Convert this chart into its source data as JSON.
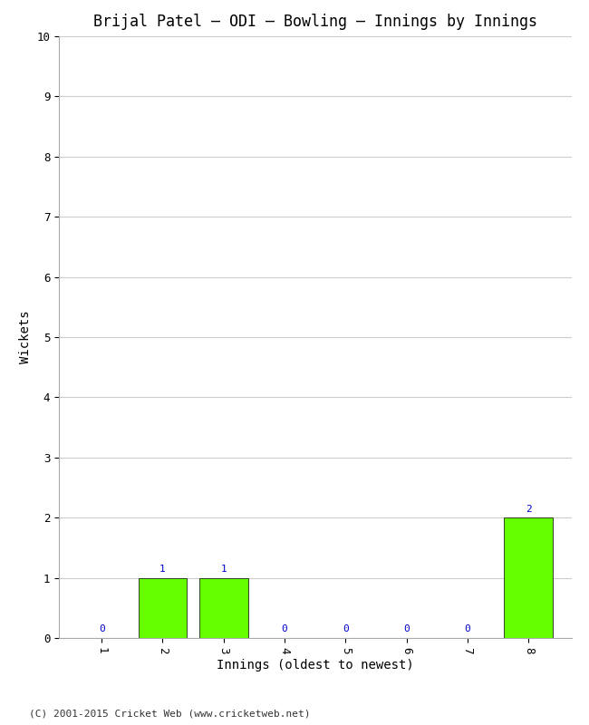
{
  "title": "Brijal Patel – ODI – Bowling – Innings by Innings",
  "xlabel": "Innings (oldest to newest)",
  "ylabel": "Wickets",
  "categories": [
    "1",
    "2",
    "3",
    "4",
    "5",
    "6",
    "7",
    "8"
  ],
  "values": [
    0,
    1,
    1,
    0,
    0,
    0,
    0,
    2
  ],
  "bar_color": "#66ff00",
  "bar_edge_color": "#000000",
  "ylim": [
    0,
    10
  ],
  "yticks": [
    0,
    1,
    2,
    3,
    4,
    5,
    6,
    7,
    8,
    9,
    10
  ],
  "label_color": "#0000cc",
  "label_fontsize": 8,
  "title_fontsize": 12,
  "axis_label_fontsize": 10,
  "tick_fontsize": 9,
  "background_color": "#ffffff",
  "plot_bg_color": "#ffffff",
  "footer_text": "(C) 2001-2015 Cricket Web (www.cricketweb.net)",
  "footer_fontsize": 8,
  "grid_color": "#cccccc"
}
